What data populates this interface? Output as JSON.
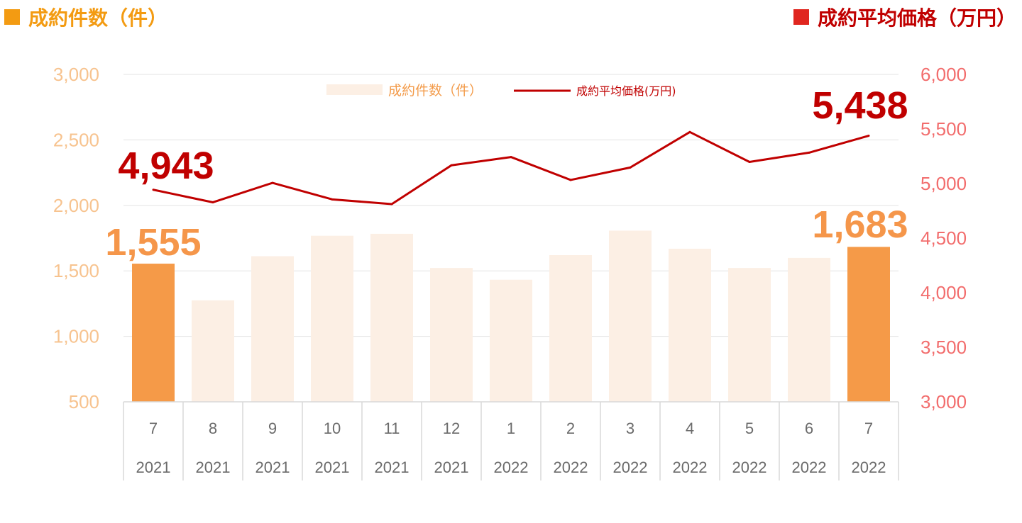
{
  "header": {
    "left_title": "成約件数（件）",
    "right_title": "成約平均価格（万円）",
    "left_color": "#f39b12",
    "right_color": "#c00000"
  },
  "chart_data": {
    "type": "bar",
    "categories": [
      {
        "month": "7",
        "year": "2021"
      },
      {
        "month": "8",
        "year": "2021"
      },
      {
        "month": "9",
        "year": "2021"
      },
      {
        "month": "10",
        "year": "2021"
      },
      {
        "month": "11",
        "year": "2021"
      },
      {
        "month": "12",
        "year": "2021"
      },
      {
        "month": "1",
        "year": "2022"
      },
      {
        "month": "2",
        "year": "2022"
      },
      {
        "month": "3",
        "year": "2022"
      },
      {
        "month": "4",
        "year": "2022"
      },
      {
        "month": "5",
        "year": "2022"
      },
      {
        "month": "6",
        "year": "2022"
      },
      {
        "month": "7",
        "year": "2022"
      }
    ],
    "series": [
      {
        "name": "成約件数（件）",
        "type": "bar",
        "axis": "left",
        "values": [
          1555,
          1275,
          1612,
          1768,
          1783,
          1522,
          1432,
          1620,
          1807,
          1669,
          1522,
          1599,
          1683
        ],
        "highlight_indices": [
          0,
          12
        ],
        "color": "#fcefe4",
        "highlight_color": "#f59a48"
      },
      {
        "name": "成約平均価格(万円)",
        "type": "line",
        "axis": "right",
        "values": [
          4943,
          4828,
          5006,
          4855,
          4812,
          5167,
          5243,
          5033,
          5147,
          5472,
          5198,
          5283,
          5438
        ],
        "color": "#c00000"
      }
    ],
    "left_axis": {
      "min": 500,
      "max": 3000,
      "ticks": [
        "500",
        "1,000",
        "1,500",
        "2,000",
        "2,500",
        "3,000"
      ]
    },
    "right_axis": {
      "min": 3000,
      "max": 6000,
      "ticks": [
        "3,000",
        "3,500",
        "4,000",
        "4,500",
        "5,000",
        "5,500",
        "6,000"
      ]
    },
    "annotations": {
      "bar_first": "1,555",
      "bar_last": "1,683",
      "line_first": "4,943",
      "line_last": "5,438"
    },
    "legend": {
      "placement": "top-center",
      "bar_label": "成約件数（件）",
      "line_label": "成約平均価格(万円)"
    },
    "grid": true
  }
}
